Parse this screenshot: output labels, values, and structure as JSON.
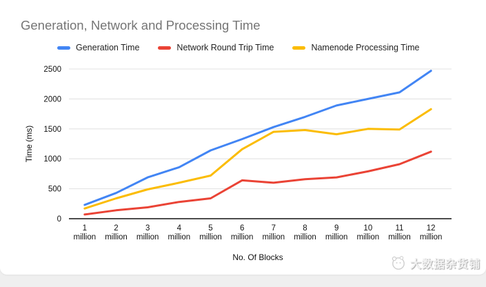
{
  "title": "Generation, Network and Processing Time",
  "legend": {
    "items": [
      {
        "label": "Generation Time",
        "color": "#4285F4"
      },
      {
        "label": "Network Round Trip Time",
        "color": "#EA4335"
      },
      {
        "label": "Namenode Processing Time",
        "color": "#FBBC04"
      }
    ]
  },
  "chart_data": {
    "type": "line",
    "title": "Generation, Network and Processing Time",
    "categories": [
      "1 million",
      "2 million",
      "3 million",
      "4 million",
      "5 million",
      "6 million",
      "7 million",
      "8 million",
      "9 million",
      "10 million",
      "11 million",
      "12 million"
    ],
    "series": [
      {
        "name": "Generation Time",
        "color": "#4285F4",
        "values": [
          230,
          430,
          690,
          860,
          1140,
          1330,
          1530,
          1700,
          1890,
          2000,
          2110,
          2470
        ]
      },
      {
        "name": "Network Round Trip Time",
        "color": "#EA4335",
        "values": [
          70,
          140,
          190,
          280,
          340,
          640,
          600,
          660,
          690,
          790,
          910,
          1120
        ]
      },
      {
        "name": "Namenode Processing Time",
        "color": "#FBBC04",
        "values": [
          170,
          340,
          490,
          600,
          720,
          1160,
          1450,
          1480,
          1410,
          1500,
          1490,
          1830
        ]
      }
    ],
    "xlabel": "No. Of Blocks",
    "ylabel": "Time (ms)",
    "ylim": [
      0,
      2500
    ],
    "yticks": [
      0,
      500,
      1000,
      1500,
      2000,
      2500
    ],
    "grid": true,
    "legend_position": "top"
  },
  "colors": {
    "title_text": "#757575",
    "gridline": "#e3e3e3",
    "axis_line": "#111111",
    "tick_text": "#111111",
    "page_strip": "#efefef"
  },
  "watermark": {
    "text": "大数据杂货铺"
  }
}
